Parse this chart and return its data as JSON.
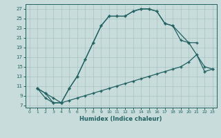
{
  "bg_color": "#c8dcdc",
  "line_color": "#206060",
  "grid_color": "#a8c4c4",
  "xlabel": "Humidex (Indice chaleur)",
  "xlim": [
    -0.5,
    23.5
  ],
  "ylim": [
    6.5,
    28.0
  ],
  "yticks": [
    7,
    9,
    11,
    13,
    15,
    17,
    19,
    21,
    23,
    25,
    27
  ],
  "xticks": [
    0,
    1,
    2,
    3,
    4,
    5,
    6,
    7,
    8,
    9,
    10,
    11,
    12,
    13,
    14,
    15,
    16,
    17,
    18,
    19,
    20,
    21,
    22,
    23
  ],
  "curve1_x": [
    1,
    2,
    3,
    4,
    5,
    6,
    7,
    8,
    9,
    10,
    11,
    12,
    13,
    14,
    15,
    16,
    17,
    18,
    20,
    22,
    23
  ],
  "curve1_y": [
    10.5,
    9.5,
    8.5,
    7.5,
    10.5,
    13.0,
    16.5,
    20.0,
    23.5,
    25.5,
    25.5,
    25.5,
    26.5,
    27.0,
    27.0,
    26.5,
    24.0,
    23.5,
    20.0,
    15.0,
    14.5
  ],
  "curve2_x": [
    1,
    2,
    3,
    4,
    5,
    6,
    7,
    8,
    9,
    10,
    11,
    12,
    13,
    14,
    15,
    16,
    17,
    18,
    19,
    20,
    21
  ],
  "curve2_y": [
    10.5,
    9.5,
    7.5,
    7.5,
    10.5,
    13.0,
    16.5,
    20.0,
    23.5,
    25.5,
    25.5,
    25.5,
    26.5,
    27.0,
    27.0,
    26.5,
    24.0,
    23.5,
    20.5,
    20.0,
    20.0
  ],
  "curve3_x": [
    1,
    2,
    3,
    4,
    5,
    6,
    7,
    8,
    9,
    10,
    11,
    12,
    13,
    14,
    15,
    16,
    17,
    18,
    19,
    20,
    21,
    22,
    23
  ],
  "curve3_y": [
    10.5,
    8.5,
    7.5,
    7.5,
    8.0,
    8.5,
    9.0,
    9.5,
    10.0,
    10.5,
    11.0,
    11.5,
    12.0,
    12.5,
    13.0,
    13.5,
    14.0,
    14.5,
    15.0,
    16.0,
    17.5,
    14.0,
    14.5
  ]
}
